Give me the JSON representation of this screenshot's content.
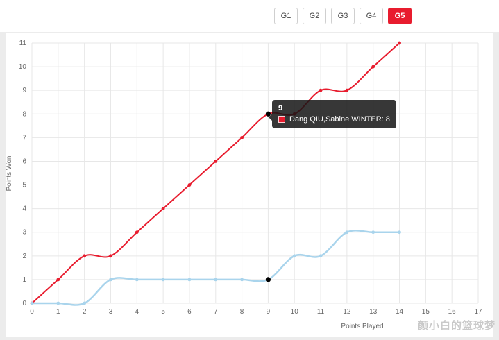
{
  "header": {
    "tabs": [
      {
        "label": "G1",
        "active": false
      },
      {
        "label": "G2",
        "active": false
      },
      {
        "label": "G3",
        "active": false
      },
      {
        "label": "G4",
        "active": false
      },
      {
        "label": "G5",
        "active": true
      }
    ],
    "active_color": "#e81c2e"
  },
  "chart_data": {
    "type": "line",
    "title": "",
    "xlabel": "Points Played",
    "ylabel": "Points Won",
    "xlim": [
      0,
      17
    ],
    "ylim": [
      0,
      11
    ],
    "xticks": [
      0,
      1,
      2,
      3,
      4,
      5,
      6,
      7,
      8,
      9,
      10,
      11,
      12,
      13,
      14,
      15,
      16,
      17
    ],
    "yticks": [
      0,
      1,
      2,
      3,
      4,
      5,
      6,
      7,
      8,
      9,
      10,
      11
    ],
    "grid": true,
    "legend": "none",
    "x": [
      0,
      1,
      2,
      3,
      4,
      5,
      6,
      7,
      8,
      9,
      10,
      11,
      12,
      13,
      14
    ],
    "series": [
      {
        "name": "Dang QIU,Sabine WINTER",
        "color": "#e81c2e",
        "width": 2,
        "values": [
          0,
          1,
          2,
          2,
          3,
          4,
          5,
          6,
          7,
          8,
          8,
          9,
          9,
          10,
          11
        ]
      },
      {
        "name": "",
        "color": "#a9d4ec",
        "width": 2.5,
        "values": [
          0,
          0,
          0,
          1,
          1,
          1,
          1,
          1,
          1,
          1,
          2,
          2,
          3,
          3,
          3
        ]
      }
    ],
    "hover_points": [
      {
        "x": 9,
        "y": 8
      },
      {
        "x": 9,
        "y": 1
      }
    ],
    "hover_point_color": "#000000",
    "grid_color": "#e7e7e7",
    "tick_color": "#666666"
  },
  "tooltip": {
    "title": "9",
    "rows": [
      {
        "marker_color": "#e81c2e",
        "text": "Dang QIU,Sabine WINTER: 8"
      }
    ]
  },
  "watermark": "颜小白的篮球梦"
}
